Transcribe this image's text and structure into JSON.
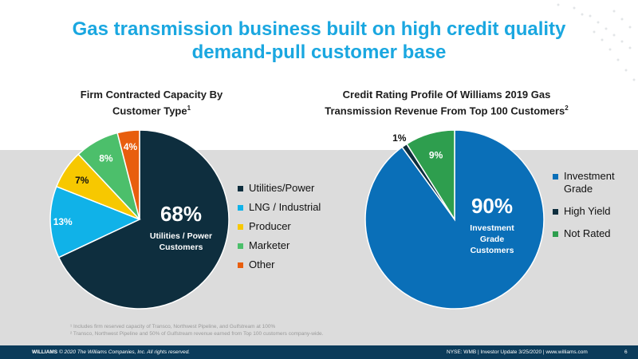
{
  "title_line1": "Gas transmission business built on high credit quality",
  "title_line2": "demand-pull customer base",
  "chart_data": [
    {
      "type": "pie",
      "title": "Firm Contracted Capacity By Customer Type",
      "title_superscript": "1",
      "center_value": "68%",
      "center_label_line1": "Utilities / Power",
      "center_label_line2": "Customers",
      "categories": [
        "Utilities/Power",
        "LNG / Industrial",
        "Producer",
        "Marketer",
        "Other"
      ],
      "values": [
        68,
        13,
        7,
        8,
        4
      ],
      "value_labels": [
        "",
        "13%",
        "7%",
        "8%",
        "4%"
      ],
      "colors": [
        "#0e2e3e",
        "#10b2e8",
        "#f7c800",
        "#4cbf6b",
        "#e85e0e"
      ],
      "start_angle_deg": 0,
      "legend": "right"
    },
    {
      "type": "pie",
      "title": "Credit Rating Profile Of Williams 2019 Gas Transmission Revenue From Top 100 Customers",
      "title_superscript": "2",
      "center_value": "90%",
      "center_label_line1": "Investment",
      "center_label_line2": "Grade",
      "center_label_line3": "Customers",
      "categories": [
        "Investment Grade",
        "High Yield",
        "Not Rated"
      ],
      "values": [
        90,
        1,
        9
      ],
      "value_labels": [
        "",
        "1%",
        "9%"
      ],
      "colors": [
        "#0a6fb8",
        "#0e2e3e",
        "#2e9e4e"
      ],
      "start_angle_deg": 0,
      "legend": "right"
    }
  ],
  "footnotes": {
    "line1": "¹ Includes firm reserved capacity of Transco, Northwest Pipeline, and Gulfstream at 100%",
    "line2": "² Transco, Northwest Pipeline and 50% of Gulfstream revenue earned from Top 100 customers company-wide."
  },
  "footer": {
    "brand": "WILLIAMS",
    "copyright": "© 2020 The Williams Companies, Inc. All rights reserved.",
    "right_text": "NYSE: WMB   |   Investor Update 3/25/2020   |   www.williams.com",
    "page": "6"
  }
}
